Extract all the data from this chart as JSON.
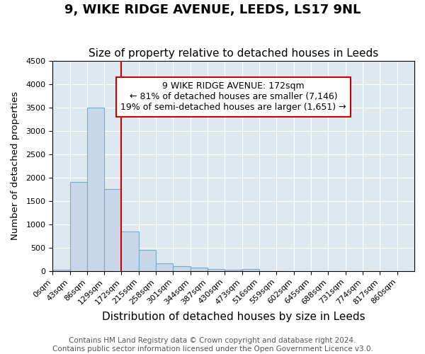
{
  "title": "9, WIKE RIDGE AVENUE, LEEDS, LS17 9NL",
  "subtitle": "Size of property relative to detached houses in Leeds",
  "xlabel": "Distribution of detached houses by size in Leeds",
  "ylabel": "Number of detached properties",
  "bin_labels": [
    "0sqm",
    "43sqm",
    "86sqm",
    "129sqm",
    "172sqm",
    "215sqm",
    "258sqm",
    "301sqm",
    "344sqm",
    "387sqm",
    "430sqm",
    "473sqm",
    "516sqm",
    "559sqm",
    "602sqm",
    "645sqm",
    "688sqm",
    "731sqm",
    "774sqm",
    "817sqm",
    "860sqm"
  ],
  "bar_heights": [
    30,
    1900,
    3500,
    1750,
    850,
    450,
    160,
    100,
    80,
    50,
    30,
    45,
    0,
    0,
    0,
    0,
    0,
    0,
    0,
    0,
    0
  ],
  "bar_color": "#c8d8ea",
  "bar_edge_color": "#7aaac8",
  "vline_x_index": 4,
  "vline_color": "#cc0000",
  "annotation_text": "9 WIKE RIDGE AVENUE: 172sqm\n← 81% of detached houses are smaller (7,146)\n19% of semi-detached houses are larger (1,651) →",
  "annotation_box_color": "#ffffff",
  "annotation_box_edge_color": "#cc0000",
  "ylim": [
    0,
    4500
  ],
  "yticks": [
    0,
    500,
    1000,
    1500,
    2000,
    2500,
    3000,
    3500,
    4000,
    4500
  ],
  "background_color": "#dde8f0",
  "footnote": "Contains HM Land Registry data © Crown copyright and database right 2024.\nContains public sector information licensed under the Open Government Licence v3.0.",
  "title_fontsize": 13,
  "subtitle_fontsize": 11,
  "xlabel_fontsize": 11,
  "ylabel_fontsize": 9.5,
  "tick_fontsize": 8,
  "annotation_fontsize": 9,
  "footnote_fontsize": 7.5
}
